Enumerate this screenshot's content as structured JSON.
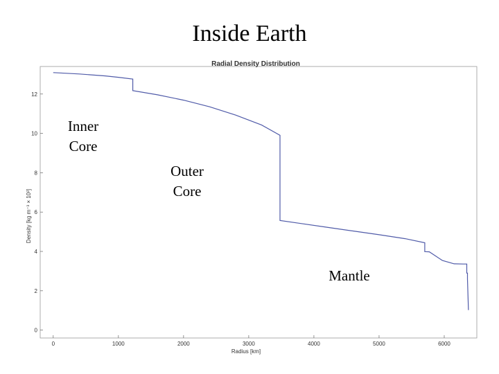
{
  "slide": {
    "title": "Inside Earth"
  },
  "chart_data": {
    "type": "line",
    "title": "Radial Density Distribution",
    "xlabel": "Radius [km]",
    "ylabel": "Density [kg m⁻³ × 10³]",
    "xlim": [
      -200,
      6500
    ],
    "ylim": [
      -0.4,
      13.4
    ],
    "x_ticks": [
      0,
      1000,
      2000,
      3000,
      4000,
      5000,
      6000
    ],
    "y_ticks": [
      0,
      2,
      4,
      6,
      8,
      10,
      12
    ],
    "grid": false,
    "line_color": "#4f5aa8",
    "series": [
      {
        "x": [
          0,
          400,
          800,
          1000,
          1221,
          1221,
          1600,
          2000,
          2400,
          2800,
          3200,
          3480,
          3480,
          3800,
          4200,
          4600,
          5000,
          5400,
          5701,
          5701,
          5771,
          5771,
          5971,
          5971,
          6151,
          6151,
          6291,
          6346,
          6346,
          6356,
          6356,
          6371
        ],
        "y": [
          13.09,
          13.02,
          12.92,
          12.85,
          12.76,
          12.17,
          11.96,
          11.69,
          11.35,
          10.93,
          10.42,
          9.9,
          5.57,
          5.42,
          5.23,
          5.04,
          4.85,
          4.65,
          4.44,
          3.99,
          3.98,
          3.98,
          3.54,
          3.54,
          3.37,
          3.37,
          3.36,
          3.36,
          2.9,
          2.9,
          2.6,
          1.02
        ]
      }
    ],
    "annotations": [
      {
        "lines": [
          "Inner",
          "Core"
        ]
      },
      {
        "lines": [
          "Outer",
          "Core"
        ]
      },
      {
        "lines": [
          "Mantle"
        ]
      }
    ]
  }
}
